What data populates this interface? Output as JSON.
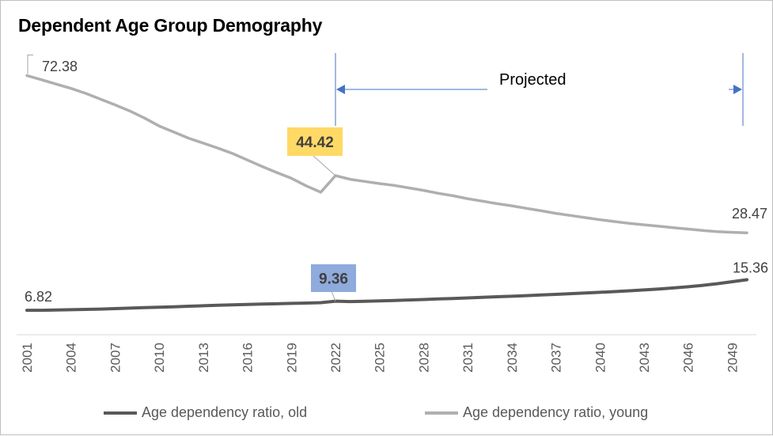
{
  "chart_data": {
    "type": "line",
    "title": "Dependent Age Group Demography",
    "xlabel": "",
    "ylabel": "",
    "x": [
      2001,
      2002,
      2003,
      2004,
      2005,
      2006,
      2007,
      2008,
      2009,
      2010,
      2011,
      2012,
      2013,
      2014,
      2015,
      2016,
      2017,
      2018,
      2019,
      2020,
      2021,
      2022,
      2023,
      2024,
      2025,
      2026,
      2027,
      2028,
      2029,
      2030,
      2031,
      2032,
      2033,
      2034,
      2035,
      2036,
      2037,
      2038,
      2039,
      2040,
      2041,
      2042,
      2043,
      2044,
      2045,
      2046,
      2047,
      2048,
      2049,
      2050
    ],
    "x_tick_labels": [
      "2001",
      "2004",
      "2007",
      "2010",
      "2013",
      "2016",
      "2019",
      "2022",
      "2025",
      "2028",
      "2031",
      "2034",
      "2037",
      "2040",
      "2043",
      "2046",
      "2049"
    ],
    "ylim": [
      0,
      80
    ],
    "grid": false,
    "legend_position": "bottom",
    "series": [
      {
        "name": "Age dependency ratio, old",
        "color": "#595959",
        "values": [
          6.82,
          6.83,
          6.9,
          6.98,
          7.08,
          7.17,
          7.3,
          7.42,
          7.56,
          7.68,
          7.8,
          7.95,
          8.08,
          8.22,
          8.35,
          8.45,
          8.55,
          8.65,
          8.75,
          8.85,
          8.95,
          9.36,
          9.25,
          9.35,
          9.45,
          9.58,
          9.7,
          9.84,
          9.98,
          10.12,
          10.28,
          10.43,
          10.6,
          10.75,
          10.92,
          11.1,
          11.28,
          11.46,
          11.65,
          11.85,
          12.05,
          12.27,
          12.5,
          12.75,
          13.05,
          13.4,
          13.8,
          14.25,
          14.8,
          15.36
        ]
      },
      {
        "name": "Age dependency ratio, young",
        "color": "#afafaf",
        "values": [
          72.38,
          71.2,
          70.0,
          68.8,
          67.4,
          65.8,
          64.2,
          62.5,
          60.5,
          58.3,
          56.6,
          54.9,
          53.5,
          52.1,
          50.6,
          48.8,
          47.0,
          45.3,
          43.7,
          41.6,
          39.8,
          44.42,
          43.4,
          42.8,
          42.2,
          41.7,
          41.0,
          40.3,
          39.5,
          38.8,
          38.0,
          37.3,
          36.6,
          36.0,
          35.3,
          34.6,
          33.9,
          33.3,
          32.7,
          32.1,
          31.6,
          31.1,
          30.7,
          30.3,
          29.9,
          29.5,
          29.1,
          28.8,
          28.6,
          28.47
        ]
      }
    ],
    "data_labels": [
      {
        "series": 1,
        "year": 2001,
        "text": "72.38",
        "style": "plain"
      },
      {
        "series": 1,
        "year": 2022,
        "text": "44.42",
        "style": "highlight",
        "box_color": "#ffd966"
      },
      {
        "series": 1,
        "year": 2050,
        "text": "28.47",
        "style": "plain"
      },
      {
        "series": 0,
        "year": 2001,
        "text": "6.82",
        "style": "plain"
      },
      {
        "series": 0,
        "year": 2022,
        "text": "9.36",
        "style": "highlight",
        "box_color": "#8faadc"
      },
      {
        "series": 0,
        "year": 2050,
        "text": "15.36",
        "style": "plain"
      }
    ],
    "annotations": [
      {
        "text": "Projected",
        "from_year": 2022,
        "to_year": 2050,
        "color": "#4472c4"
      }
    ]
  }
}
